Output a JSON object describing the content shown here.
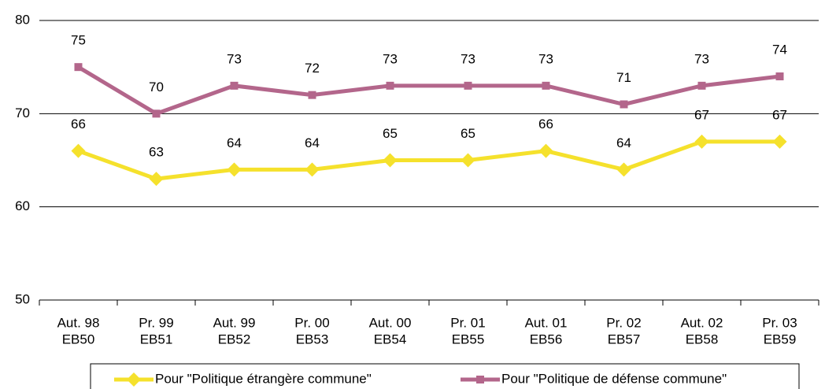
{
  "chart_data": {
    "type": "line",
    "categories": [
      [
        "Aut. 98",
        "EB50"
      ],
      [
        "Pr. 99",
        "EB51"
      ],
      [
        "Aut. 99",
        "EB52"
      ],
      [
        "Pr. 00",
        "EB53"
      ],
      [
        "Aut. 00",
        "EB54"
      ],
      [
        "Pr. 01",
        "EB55"
      ],
      [
        "Aut. 01",
        "EB56"
      ],
      [
        "Pr. 02",
        "EB57"
      ],
      [
        "Aut. 02",
        "EB58"
      ],
      [
        "Pr. 03",
        "EB59"
      ]
    ],
    "series": [
      {
        "name": "Pour \"Politique étrangère commune\"",
        "color": "#f5e12c",
        "marker": "diamond",
        "values": [
          66,
          63,
          64,
          64,
          65,
          65,
          66,
          64,
          67,
          67
        ]
      },
      {
        "name": "Pour \"Politique de défense commune\"",
        "color": "#b3668b",
        "marker": "square",
        "values": [
          75,
          70,
          73,
          72,
          73,
          73,
          73,
          71,
          73,
          74
        ]
      }
    ],
    "ylim": [
      50,
      80
    ],
    "yticks": [
      50,
      60,
      70,
      80
    ],
    "grid": true,
    "legend": "bottom"
  }
}
